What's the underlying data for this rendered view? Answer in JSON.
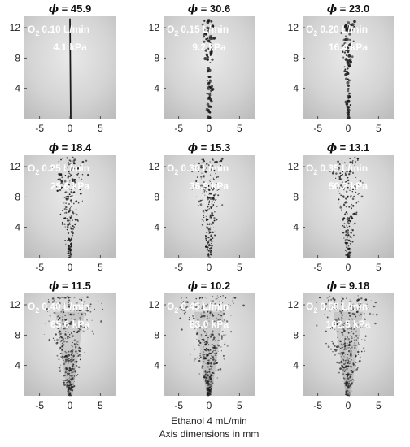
{
  "figure": {
    "caption_lines": [
      "Ethanol 4 mL/min",
      "Axis dimensions in mm"
    ],
    "phi_symbol": "ϕ",
    "panels": [
      {
        "phi": "45.9",
        "o2_label": "O",
        "o2_sub": "2",
        "flow": "0.10 L/min",
        "pressure": "4.1 kPa",
        "pattern": "jet"
      },
      {
        "phi": "30.6",
        "o2_label": "O",
        "o2_sub": "2",
        "flow": "0.15 L/min",
        "pressure": "9.2 kPa",
        "pattern": "dotted"
      },
      {
        "phi": "23.0",
        "o2_label": "O",
        "o2_sub": "2",
        "flow": "0.20 L/min",
        "pressure": "16.4 kPa",
        "pattern": "dotted"
      },
      {
        "phi": "18.4",
        "o2_label": "O",
        "o2_sub": "2",
        "flow": "0.25 L/min",
        "pressure": "25.6 kPa",
        "pattern": "spray"
      },
      {
        "phi": "15.3",
        "o2_label": "O",
        "o2_sub": "2",
        "flow": "0.30 L/min",
        "pressure": "36.9 kPa",
        "pattern": "spray"
      },
      {
        "phi": "13.1",
        "o2_label": "O",
        "o2_sub": "2",
        "flow": "0.35 L/min",
        "pressure": "50.2 kPa",
        "pattern": "spray"
      },
      {
        "phi": "11.5",
        "o2_label": "O",
        "o2_sub": "2",
        "flow": "0.40 L/min",
        "pressure": "65.6 kPa",
        "pattern": "cone"
      },
      {
        "phi": "10.2",
        "o2_label": "O",
        "o2_sub": "2",
        "flow": "0.45 L/min",
        "pressure": "83.0 kPa",
        "pattern": "cone"
      },
      {
        "phi": "9.18",
        "o2_label": "O",
        "o2_sub": "2",
        "flow": "0.50 L/min",
        "pressure": "102.5 kPa",
        "pattern": "cone"
      }
    ],
    "axes": {
      "x_ticks": [
        "-5",
        "0",
        "5"
      ],
      "x_tick_values": [
        -5,
        0,
        5
      ],
      "xlim": [
        -7.5,
        7.5
      ],
      "y_ticks": [
        "4",
        "8",
        "12"
      ],
      "y_tick_values": [
        4,
        8,
        12
      ],
      "ylim": [
        0,
        13.5
      ]
    },
    "colors": {
      "background_light": "#e6e6e6",
      "background_dark": "#b9b9b9",
      "droplet": "#1a1a1a",
      "label_text": "#ffffff",
      "axis": "#333333"
    }
  }
}
